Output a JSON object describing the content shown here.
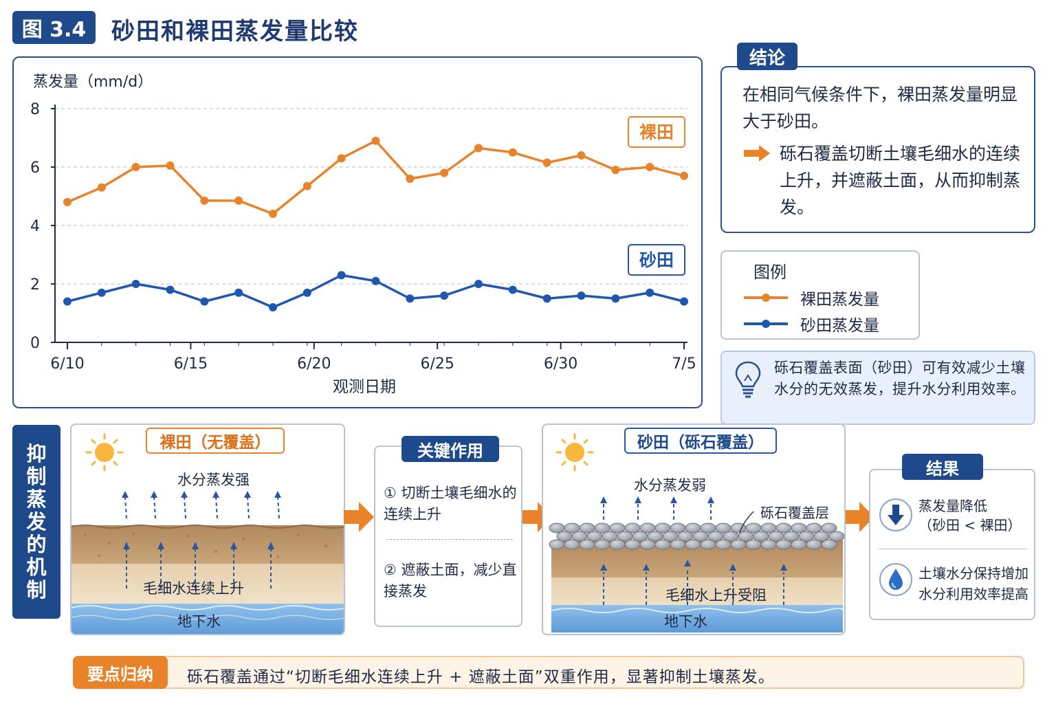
{
  "figure": {
    "badge": "图 3.4",
    "title": "砂田和裸田蒸发量比较"
  },
  "chart_data": {
    "type": "line",
    "ylabel": "蒸发量（mm/d）",
    "xlabel": "观测日期",
    "ylim": [
      0,
      8
    ],
    "yticks": [
      "0",
      "2",
      "4",
      "6",
      "8"
    ],
    "xticks": [
      "6/10",
      "6/15",
      "6/20",
      "6/25",
      "6/30",
      "7/5"
    ],
    "grid": true,
    "series": [
      {
        "name": "裸田",
        "color": "#e8832a",
        "values": [
          4.8,
          5.3,
          6.0,
          6.05,
          4.85,
          4.85,
          4.4,
          5.35,
          6.3,
          6.9,
          5.6,
          5.8,
          6.65,
          6.5,
          6.15,
          6.4,
          5.9,
          6.0,
          5.7
        ]
      },
      {
        "name": "砂田",
        "color": "#1f57b0",
        "values": [
          1.4,
          1.7,
          2.0,
          1.8,
          1.4,
          1.7,
          1.2,
          1.7,
          2.3,
          2.1,
          1.5,
          1.6,
          2.0,
          1.8,
          1.5,
          1.6,
          1.5,
          1.7,
          1.4
        ]
      }
    ]
  },
  "conclusion": {
    "tag": "结论",
    "line1": "在相同气候条件下，裸田蒸发量明显大于砂田。",
    "line2": "砾石覆盖切断土壤毛细水的连续上升，并遮蔽土面，从而抑制蒸发。"
  },
  "legend": {
    "title": "图例",
    "bare": "裸田蒸发量",
    "sand": "砂田蒸发量"
  },
  "tip": {
    "text": "砾石覆盖表面（砂田）可有效减少土壤水分的无效蒸发，提升水分利用效率。"
  },
  "mechanism": {
    "side_tag": [
      "抑",
      "制",
      "蒸",
      "发",
      "的",
      "机",
      "制"
    ],
    "bare": {
      "tag": "裸田（无覆盖）",
      "evap": "水分蒸发强",
      "capillary": "毛细水连续上升",
      "groundwater": "地下水"
    },
    "key": {
      "tag": "关键作用",
      "item1": "① 切断土壤毛细水的连续上升",
      "item2": "② 遮蔽土面，减少直接蒸发"
    },
    "sand": {
      "tag": "砂田（砾石覆盖）",
      "evap": "水分蒸发弱",
      "layer": "砾石覆盖层",
      "capillary": "毛细水上升受阻",
      "groundwater": "地下水"
    },
    "result": {
      "tag": "结果",
      "item1a": "蒸发量降低",
      "item1b": "（砂田 < 裸田）",
      "item2a": "土壤水分保持增加",
      "item2b": "水分利用效率提高"
    }
  },
  "summary": {
    "tag": "要点归纳",
    "text": "砾石覆盖通过“切断毛细水连续上升 + 遮蔽土面”双重作用，显著抑制土壤蒸发。"
  },
  "colors": {
    "primary": "#1e4a8c",
    "bare": "#e8832a",
    "sand": "#1f57b0"
  }
}
